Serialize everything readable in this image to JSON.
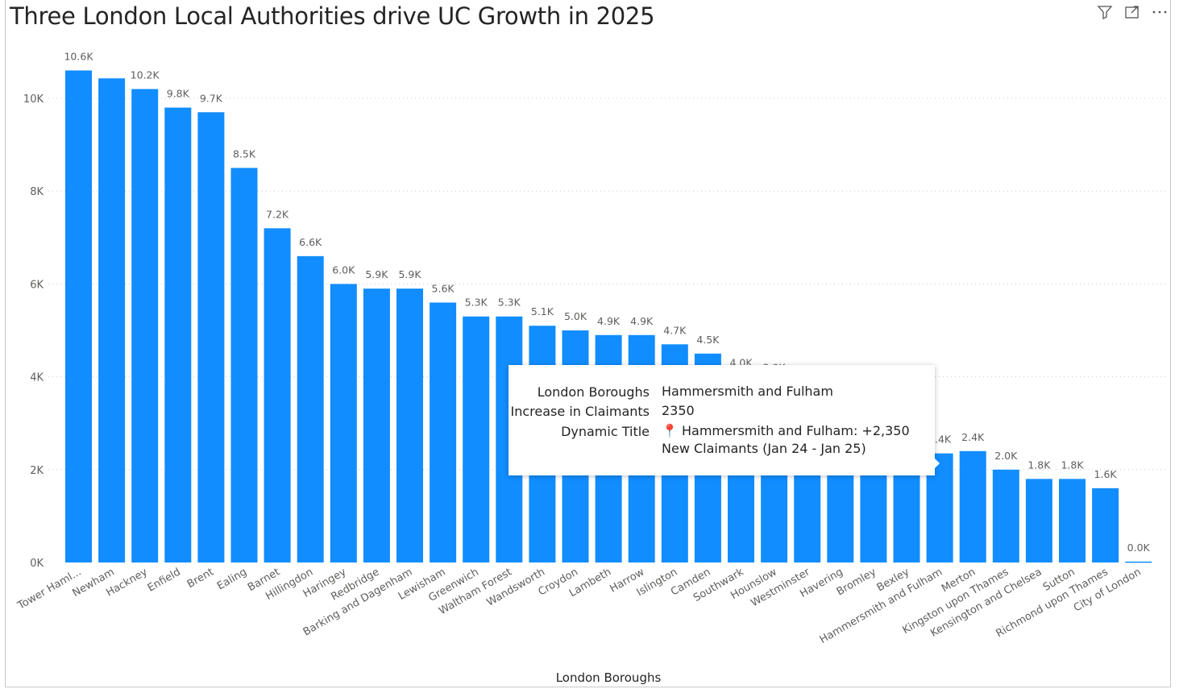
{
  "header": {
    "title": "Three London Local Authorities drive UC Growth in 2025"
  },
  "toolbar": {
    "icons": [
      "filter-icon",
      "focus-mode-icon",
      "more-options-icon"
    ]
  },
  "tooltip": {
    "rows": [
      {
        "label": "London Boroughs",
        "value": "Hammersmith and Fulham"
      },
      {
        "label": "Increase in Claimants",
        "value": "2350"
      },
      {
        "label": "Dynamic Title",
        "value": "📍 Hammersmith and Fulham: +2,350 New Claimants (Jan 24 - Jan 25)"
      }
    ]
  },
  "chart_data": {
    "type": "bar",
    "title": "Three London Local Authorities drive UC Growth in 2025",
    "xlabel": "London Boroughs",
    "ylabel": "",
    "ylim": [
      0,
      10600
    ],
    "yticks": [
      0,
      2000,
      4000,
      6000,
      8000,
      10000
    ],
    "ytick_labels": [
      "0K",
      "2K",
      "4K",
      "6K",
      "8K",
      "10K"
    ],
    "grid": true,
    "color": "#118DFF",
    "categories": [
      "Tower Haml...",
      "Newham",
      "Hackney",
      "Enfield",
      "Brent",
      "Ealing",
      "Barnet",
      "Hillingdon",
      "Haringey",
      "Redbridge",
      "Barking and Dagenham",
      "Lewisham",
      "Greenwich",
      "Waltham Forest",
      "Wandsworth",
      "Croydon",
      "Lambeth",
      "Harrow",
      "Islington",
      "Camden",
      "Southwark",
      "Hounslow",
      "Westminster",
      "Havering",
      "Bromley",
      "Bexley",
      "Hammersmith and Fulham",
      "Merton",
      "Kingston upon Thames",
      "Kensington and Chelsea",
      "Sutton",
      "Richmond upon Thames",
      "City of London"
    ],
    "values": [
      10600,
      10430,
      10200,
      9800,
      9700,
      8500,
      7200,
      6600,
      6000,
      5900,
      5900,
      5600,
      5300,
      5300,
      5100,
      5000,
      4900,
      4900,
      4700,
      4500,
      4000,
      3900,
      3500,
      3200,
      2900,
      2600,
      2350,
      2400,
      2000,
      1800,
      1800,
      1600,
      20
    ],
    "data_labels": [
      "10.6K",
      "",
      "10.2K",
      "9.8K",
      "9.7K",
      "8.5K",
      "7.2K",
      "6.6K",
      "6.0K",
      "5.9K",
      "5.9K",
      "5.6K",
      "5.3K",
      "5.3K",
      "5.1K",
      "5.0K",
      "4.9K",
      "4.9K",
      "4.7K",
      "4.5K",
      "4.0K",
      "3.9K",
      "",
      "",
      "",
      "",
      "2.4K",
      "2.4K",
      "2.0K",
      "1.8K",
      "1.8K",
      "1.6K",
      "0.0K"
    ]
  }
}
